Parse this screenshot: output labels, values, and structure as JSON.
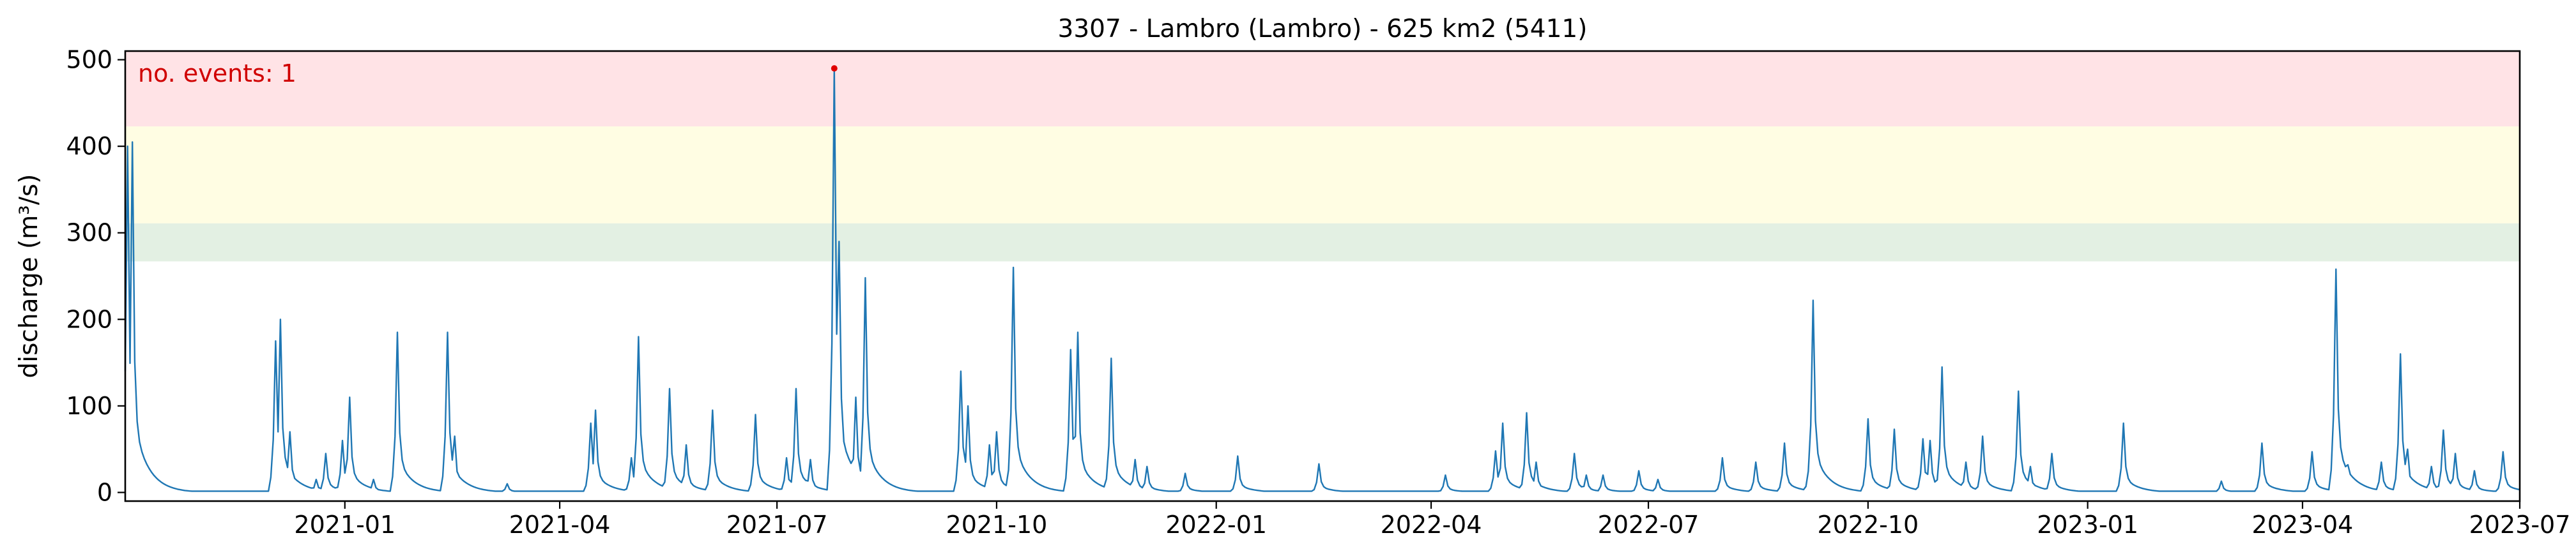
{
  "chart_data": {
    "type": "line",
    "title": "3307 - Lambro (Lambro) - 625 km2 (5411)",
    "xlabel": "",
    "ylabel": "discharge (m³/s)",
    "annotation": "no. events: 1",
    "xlim": [
      "2020-10-01",
      "2023-07-01"
    ],
    "ylim": [
      -10,
      510
    ],
    "x_ticks": [
      "2021-01",
      "2021-04",
      "2021-07",
      "2021-10",
      "2022-01",
      "2022-04",
      "2022-07",
      "2022-10",
      "2023-01",
      "2023-04",
      "2023-07"
    ],
    "y_ticks": [
      0,
      100,
      200,
      300,
      400,
      500
    ],
    "grid": false,
    "threshold_bands": [
      {
        "from": 267,
        "to": 311,
        "color": "#e3f0e3"
      },
      {
        "from": 311,
        "to": 423,
        "color": "#fffde3"
      },
      {
        "from": 423,
        "to": 510,
        "color": "#ffe3e6"
      }
    ],
    "event_points": [
      {
        "x": "2021-07-25",
        "y": 490
      }
    ],
    "series": [
      {
        "color": "#1f77b4",
        "baseline": 1.5,
        "peaks": [
          {
            "x": "2020-10-02",
            "y": 400
          },
          {
            "x": "2020-10-04",
            "y": 405
          },
          {
            "x": "2020-12-03",
            "y": 175
          },
          {
            "x": "2020-12-05",
            "y": 200
          },
          {
            "x": "2020-12-09",
            "y": 70
          },
          {
            "x": "2020-12-20",
            "y": 15
          },
          {
            "x": "2020-12-24",
            "y": 45
          },
          {
            "x": "2020-12-31",
            "y": 60
          },
          {
            "x": "2021-01-03",
            "y": 110
          },
          {
            "x": "2021-01-13",
            "y": 15
          },
          {
            "x": "2021-01-23",
            "y": 185
          },
          {
            "x": "2021-02-13",
            "y": 185
          },
          {
            "x": "2021-02-16",
            "y": 65
          },
          {
            "x": "2021-03-10",
            "y": 10
          },
          {
            "x": "2021-04-14",
            "y": 80
          },
          {
            "x": "2021-04-16",
            "y": 95
          },
          {
            "x": "2021-05-01",
            "y": 40
          },
          {
            "x": "2021-05-04",
            "y": 180
          },
          {
            "x": "2021-05-17",
            "y": 120
          },
          {
            "x": "2021-05-24",
            "y": 55
          },
          {
            "x": "2021-06-04",
            "y": 95
          },
          {
            "x": "2021-06-22",
            "y": 90
          },
          {
            "x": "2021-07-05",
            "y": 40
          },
          {
            "x": "2021-07-09",
            "y": 120
          },
          {
            "x": "2021-07-15",
            "y": 38
          },
          {
            "x": "2021-07-25",
            "y": 490
          },
          {
            "x": "2021-07-27",
            "y": 290
          },
          {
            "x": "2021-08-03",
            "y": 110
          },
          {
            "x": "2021-08-07",
            "y": 248
          },
          {
            "x": "2021-09-16",
            "y": 140
          },
          {
            "x": "2021-09-19",
            "y": 100
          },
          {
            "x": "2021-09-28",
            "y": 55
          },
          {
            "x": "2021-10-01",
            "y": 70
          },
          {
            "x": "2021-10-08",
            "y": 260
          },
          {
            "x": "2021-11-01",
            "y": 165
          },
          {
            "x": "2021-11-04",
            "y": 185
          },
          {
            "x": "2021-11-18",
            "y": 155
          },
          {
            "x": "2021-11-28",
            "y": 38
          },
          {
            "x": "2021-12-03",
            "y": 30
          },
          {
            "x": "2021-12-19",
            "y": 22
          },
          {
            "x": "2022-01-10",
            "y": 42
          },
          {
            "x": "2022-02-13",
            "y": 33
          },
          {
            "x": "2022-04-07",
            "y": 20
          },
          {
            "x": "2022-04-28",
            "y": 48
          },
          {
            "x": "2022-05-01",
            "y": 80
          },
          {
            "x": "2022-05-11",
            "y": 92
          },
          {
            "x": "2022-05-15",
            "y": 35
          },
          {
            "x": "2022-05-31",
            "y": 45
          },
          {
            "x": "2022-06-05",
            "y": 20
          },
          {
            "x": "2022-06-12",
            "y": 20
          },
          {
            "x": "2022-06-27",
            "y": 25
          },
          {
            "x": "2022-07-05",
            "y": 15
          },
          {
            "x": "2022-08-01",
            "y": 40
          },
          {
            "x": "2022-08-15",
            "y": 35
          },
          {
            "x": "2022-08-27",
            "y": 57
          },
          {
            "x": "2022-09-07",
            "y": 70
          },
          {
            "x": "2022-09-08",
            "y": 222
          },
          {
            "x": "2022-10-01",
            "y": 85
          },
          {
            "x": "2022-10-12",
            "y": 73
          },
          {
            "x": "2022-10-24",
            "y": 62
          },
          {
            "x": "2022-10-27",
            "y": 60
          },
          {
            "x": "2022-11-01",
            "y": 145
          },
          {
            "x": "2022-11-11",
            "y": 35
          },
          {
            "x": "2022-11-18",
            "y": 65
          },
          {
            "x": "2022-12-03",
            "y": 117
          },
          {
            "x": "2022-12-08",
            "y": 30
          },
          {
            "x": "2022-12-17",
            "y": 45
          },
          {
            "x": "2023-01-16",
            "y": 80
          },
          {
            "x": "2023-02-26",
            "y": 13
          },
          {
            "x": "2023-03-15",
            "y": 57
          },
          {
            "x": "2023-04-05",
            "y": 47
          },
          {
            "x": "2023-04-15",
            "y": 258
          },
          {
            "x": "2023-04-20",
            "y": 32
          },
          {
            "x": "2023-05-04",
            "y": 35
          },
          {
            "x": "2023-05-12",
            "y": 160
          },
          {
            "x": "2023-05-15",
            "y": 50
          },
          {
            "x": "2023-05-25",
            "y": 30
          },
          {
            "x": "2023-05-30",
            "y": 72
          },
          {
            "x": "2023-06-04",
            "y": 45
          },
          {
            "x": "2023-06-12",
            "y": 25
          },
          {
            "x": "2023-06-24",
            "y": 47
          }
        ]
      }
    ]
  }
}
